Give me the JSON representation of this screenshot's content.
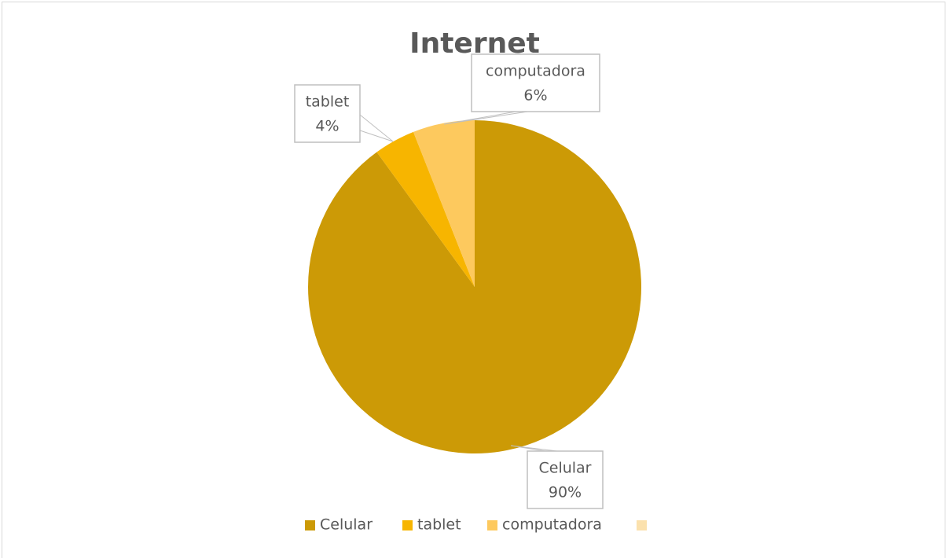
{
  "chart_data": {
    "type": "pie",
    "title": "Internet",
    "categories": [
      "Celular",
      "tablet",
      "computadora",
      null
    ],
    "values": [
      90,
      4,
      6,
      0
    ],
    "value_labels": [
      "90%",
      "4%",
      "6%",
      null
    ],
    "colors": [
      "#cc9a06",
      "#f7b500",
      "#fdc95e",
      "#fbe1ad"
    ],
    "legend": "bottom"
  }
}
